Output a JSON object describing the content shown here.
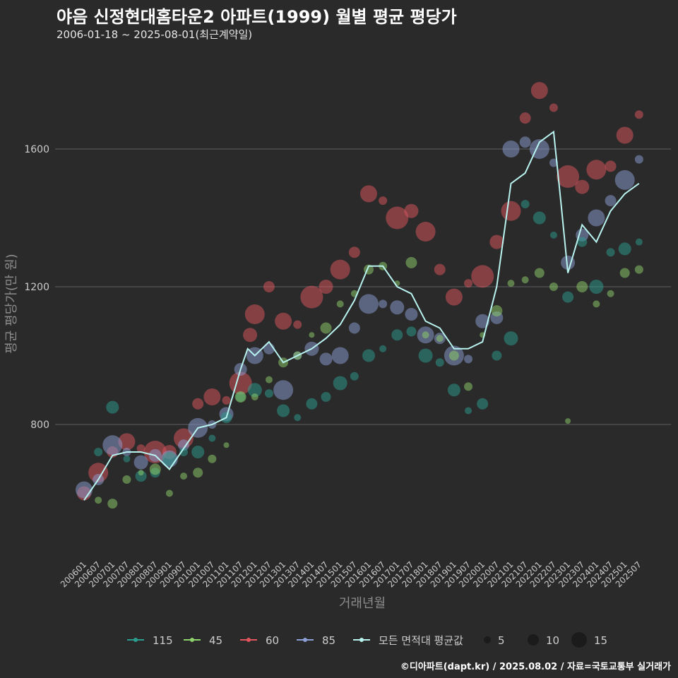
{
  "title": "야음 신정현대홈타운2 아파트(1999) 월별 평균 평당가",
  "subtitle": "2006-01-18 ~ 2025-08-01(최근계약일)",
  "credit": "©디아파트(dapt.kr) / 2025.08.02 / 자료=국토교통부 실거래가",
  "colors": {
    "background": "#2a2a2b",
    "grid": "#606063",
    "axis_text": "#cccccc",
    "axis_title": "#8c8c8c",
    "115": "#2a9d8f",
    "45": "#8fd16a",
    "60": "#e0555e",
    "85": "#8c9fd6",
    "avg": "#b8f3ef"
  },
  "chart_data": {
    "type": "scatter",
    "xlabel": "거래년월",
    "ylabel": "평균 평당가(만 원)",
    "ylim": [
      500,
      1850
    ],
    "yticks": [
      800,
      1200,
      1600
    ],
    "x_ticks": [
      "200601",
      "200607",
      "200701",
      "200707",
      "200801",
      "200807",
      "200901",
      "200907",
      "201001",
      "201007",
      "201101",
      "201107",
      "201201",
      "201207",
      "201301",
      "201307",
      "201401",
      "201407",
      "201501",
      "201507",
      "201601",
      "201607",
      "201701",
      "201707",
      "201801",
      "201807",
      "201901",
      "201907",
      "202001",
      "202007",
      "202101",
      "202107",
      "202201",
      "202207",
      "202301",
      "202307",
      "202401",
      "202407",
      "202501",
      "202507"
    ],
    "grid": true,
    "legend_position": "bottom",
    "legend": {
      "series": [
        "115",
        "45",
        "60",
        "85",
        "모든 면적대 평균값"
      ],
      "size": [
        5,
        10,
        15
      ]
    },
    "series": [
      {
        "name": "60",
        "points": [
          [
            "2006-01",
            600
          ],
          [
            "2006-07",
            660
          ],
          [
            "2007-01",
            720
          ],
          [
            "2007-07",
            750
          ],
          [
            "2008-01",
            730
          ],
          [
            "2008-07",
            720
          ],
          [
            "2009-01",
            720
          ],
          [
            "2009-07",
            760
          ],
          [
            "2010-01",
            860
          ],
          [
            "2010-07",
            880
          ],
          [
            "2011-01",
            870
          ],
          [
            "2011-07",
            920
          ],
          [
            "2011-11",
            1060
          ],
          [
            "2012-01",
            1120
          ],
          [
            "2012-07",
            1200
          ],
          [
            "2013-01",
            1100
          ],
          [
            "2013-07",
            1090
          ],
          [
            "2014-01",
            1170
          ],
          [
            "2014-07",
            1200
          ],
          [
            "2015-01",
            1250
          ],
          [
            "2015-07",
            1300
          ],
          [
            "2016-01",
            1470
          ],
          [
            "2016-07",
            1450
          ],
          [
            "2017-01",
            1400
          ],
          [
            "2017-07",
            1420
          ],
          [
            "2018-01",
            1360
          ],
          [
            "2018-07",
            1250
          ],
          [
            "2019-01",
            1170
          ],
          [
            "2019-07",
            1210
          ],
          [
            "2020-01",
            1230
          ],
          [
            "2020-07",
            1330
          ],
          [
            "2021-01",
            1420
          ],
          [
            "2021-07",
            1690
          ],
          [
            "2022-01",
            1770
          ],
          [
            "2022-07",
            1720
          ],
          [
            "2023-01",
            1520
          ],
          [
            "2023-07",
            1490
          ],
          [
            "2024-01",
            1540
          ],
          [
            "2024-07",
            1550
          ],
          [
            "2025-01",
            1640
          ],
          [
            "2025-07",
            1700
          ]
        ]
      },
      {
        "name": "85",
        "points": [
          [
            "2006-01",
            610
          ],
          [
            "2006-07",
            640
          ],
          [
            "2007-01",
            740
          ],
          [
            "2007-07",
            720
          ],
          [
            "2008-01",
            690
          ],
          [
            "2008-07",
            710
          ],
          [
            "2009-01",
            700
          ],
          [
            "2009-07",
            740
          ],
          [
            "2010-01",
            790
          ],
          [
            "2010-07",
            800
          ],
          [
            "2011-01",
            830
          ],
          [
            "2011-07",
            960
          ],
          [
            "2012-01",
            1000
          ],
          [
            "2012-07",
            1020
          ],
          [
            "2013-01",
            900
          ],
          [
            "2013-07",
            1000
          ],
          [
            "2014-01",
            1020
          ],
          [
            "2014-07",
            990
          ],
          [
            "2015-01",
            1000
          ],
          [
            "2015-07",
            1080
          ],
          [
            "2016-01",
            1150
          ],
          [
            "2016-07",
            1150
          ],
          [
            "2017-01",
            1140
          ],
          [
            "2017-07",
            1120
          ],
          [
            "2018-01",
            1060
          ],
          [
            "2018-07",
            1050
          ],
          [
            "2019-01",
            1000
          ],
          [
            "2019-07",
            990
          ],
          [
            "2020-01",
            1100
          ],
          [
            "2020-07",
            1110
          ],
          [
            "2021-01",
            1600
          ],
          [
            "2021-07",
            1620
          ],
          [
            "2022-01",
            1600
          ],
          [
            "2022-07",
            1560
          ],
          [
            "2023-01",
            1270
          ],
          [
            "2023-07",
            1350
          ],
          [
            "2024-01",
            1400
          ],
          [
            "2024-07",
            1450
          ],
          [
            "2025-01",
            1510
          ],
          [
            "2025-07",
            1570
          ]
        ]
      },
      {
        "name": "115",
        "points": [
          [
            "2006-07",
            720
          ],
          [
            "2007-01",
            850
          ],
          [
            "2007-07",
            700
          ],
          [
            "2008-01",
            650
          ],
          [
            "2008-07",
            660
          ],
          [
            "2009-01",
            700
          ],
          [
            "2009-07",
            720
          ],
          [
            "2010-01",
            720
          ],
          [
            "2010-07",
            760
          ],
          [
            "2011-01",
            820
          ],
          [
            "2011-07",
            880
          ],
          [
            "2012-01",
            900
          ],
          [
            "2012-07",
            890
          ],
          [
            "2013-01",
            840
          ],
          [
            "2013-07",
            820
          ],
          [
            "2014-01",
            860
          ],
          [
            "2014-07",
            880
          ],
          [
            "2015-01",
            920
          ],
          [
            "2015-07",
            940
          ],
          [
            "2016-01",
            1000
          ],
          [
            "2016-07",
            1020
          ],
          [
            "2017-01",
            1060
          ],
          [
            "2017-07",
            1070
          ],
          [
            "2018-01",
            1000
          ],
          [
            "2018-07",
            980
          ],
          [
            "2019-01",
            900
          ],
          [
            "2019-07",
            840
          ],
          [
            "2020-01",
            860
          ],
          [
            "2020-07",
            1000
          ],
          [
            "2021-01",
            1050
          ],
          [
            "2021-07",
            1440
          ],
          [
            "2022-01",
            1400
          ],
          [
            "2022-07",
            1350
          ],
          [
            "2023-01",
            1170
          ],
          [
            "2023-07",
            1330
          ],
          [
            "2024-01",
            1200
          ],
          [
            "2024-07",
            1300
          ],
          [
            "2025-01",
            1310
          ],
          [
            "2025-07",
            1330
          ]
        ]
      },
      {
        "name": "45",
        "points": [
          [
            "2006-07",
            580
          ],
          [
            "2007-01",
            570
          ],
          [
            "2007-07",
            640
          ],
          [
            "2008-01",
            660
          ],
          [
            "2008-07",
            670
          ],
          [
            "2009-01",
            600
          ],
          [
            "2009-07",
            650
          ],
          [
            "2010-01",
            660
          ],
          [
            "2010-07",
            700
          ],
          [
            "2011-01",
            740
          ],
          [
            "2011-07",
            880
          ],
          [
            "2012-01",
            880
          ],
          [
            "2012-07",
            930
          ],
          [
            "2013-01",
            980
          ],
          [
            "2013-07",
            1000
          ],
          [
            "2014-01",
            1060
          ],
          [
            "2014-07",
            1080
          ],
          [
            "2015-01",
            1150
          ],
          [
            "2015-07",
            1180
          ],
          [
            "2016-01",
            1250
          ],
          [
            "2016-07",
            1260
          ],
          [
            "2017-01",
            1210
          ],
          [
            "2017-07",
            1270
          ],
          [
            "2018-01",
            1060
          ],
          [
            "2018-07",
            1050
          ],
          [
            "2019-01",
            1000
          ],
          [
            "2019-07",
            910
          ],
          [
            "2020-01",
            1060
          ],
          [
            "2020-07",
            1130
          ],
          [
            "2021-01",
            1210
          ],
          [
            "2021-07",
            1220
          ],
          [
            "2022-01",
            1240
          ],
          [
            "2022-07",
            1200
          ],
          [
            "2023-01",
            810
          ],
          [
            "2023-07",
            1200
          ],
          [
            "2024-01",
            1150
          ],
          [
            "2024-07",
            1180
          ],
          [
            "2025-01",
            1240
          ],
          [
            "2025-07",
            1250
          ]
        ]
      },
      {
        "name": "모든 면적대 평균값",
        "points": [
          [
            "2006-01",
            580
          ],
          [
            "2006-07",
            640
          ],
          [
            "2007-01",
            710
          ],
          [
            "2007-07",
            720
          ],
          [
            "2008-01",
            720
          ],
          [
            "2008-07",
            710
          ],
          [
            "2009-01",
            670
          ],
          [
            "2009-07",
            730
          ],
          [
            "2010-01",
            790
          ],
          [
            "2010-07",
            800
          ],
          [
            "2011-01",
            820
          ],
          [
            "2011-07",
            960
          ],
          [
            "2011-10",
            1020
          ],
          [
            "2012-01",
            1000
          ],
          [
            "2012-07",
            1040
          ],
          [
            "2013-01",
            980
          ],
          [
            "2013-07",
            1000
          ],
          [
            "2014-01",
            1020
          ],
          [
            "2014-07",
            1050
          ],
          [
            "2015-01",
            1090
          ],
          [
            "2015-07",
            1160
          ],
          [
            "2016-01",
            1260
          ],
          [
            "2016-07",
            1260
          ],
          [
            "2017-01",
            1200
          ],
          [
            "2017-07",
            1180
          ],
          [
            "2018-01",
            1100
          ],
          [
            "2018-07",
            1080
          ],
          [
            "2019-01",
            1020
          ],
          [
            "2019-07",
            1020
          ],
          [
            "2020-01",
            1040
          ],
          [
            "2020-07",
            1200
          ],
          [
            "2021-01",
            1500
          ],
          [
            "2021-07",
            1530
          ],
          [
            "2022-01",
            1620
          ],
          [
            "2022-07",
            1650
          ],
          [
            "2022-10",
            1450
          ],
          [
            "2023-01",
            1240
          ],
          [
            "2023-07",
            1380
          ],
          [
            "2024-01",
            1330
          ],
          [
            "2024-07",
            1420
          ],
          [
            "2025-01",
            1470
          ],
          [
            "2025-07",
            1500
          ]
        ]
      }
    ]
  }
}
